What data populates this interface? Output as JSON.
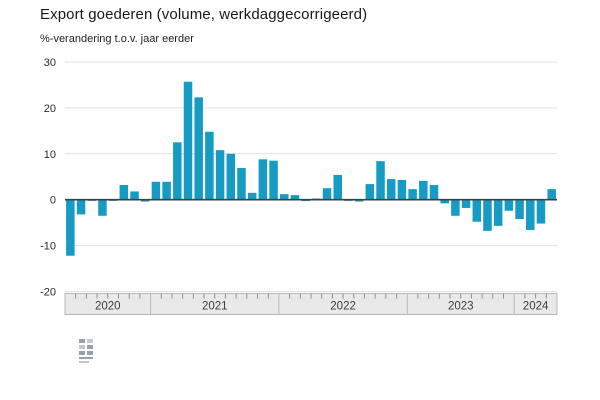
{
  "header": {
    "title": "Export goederen (volume, werkdaggecorrigeerd)",
    "subtitle": "%-verandering t.o.v. jaar eerder"
  },
  "chart_data": {
    "type": "bar",
    "title": "Export goederen (volume, werkdaggecorrigeerd)",
    "subtitle": "%-verandering t.o.v. jaar eerder",
    "unit": "% change year-on-year",
    "ylim": [
      -20,
      30
    ],
    "yticks": [
      30,
      20,
      10,
      0,
      -10,
      -20
    ],
    "grid": true,
    "legend_position": "none",
    "bar_color": "#169bc4",
    "zero_line_color": "#404040",
    "grid_color": "#e1e1e1",
    "axis_band": {
      "fill": "#e9e9e9",
      "border": "#b9b9b9",
      "tick_color": "#8f8f8f",
      "label_color": "#3c3c3c"
    },
    "series": [
      {
        "year": "2020",
        "values": [
          -12.2,
          -3.2,
          -0.2,
          -3.5,
          -0.2,
          3.2,
          1.8,
          -0.4
        ]
      },
      {
        "year": "2021",
        "values": [
          3.9,
          3.9,
          12.5,
          25.7,
          22.3,
          14.8,
          10.8,
          10.0,
          6.9,
          1.5,
          8.8,
          8.5
        ]
      },
      {
        "year": "2022",
        "values": [
          1.2,
          1.0,
          -0.3,
          0.2,
          2.5,
          5.4,
          -0.2,
          -0.4,
          3.4,
          8.4,
          4.5,
          4.3
        ]
      },
      {
        "year": "2023",
        "values": [
          2.3,
          4.1,
          3.2,
          -0.8,
          -3.5,
          -1.8,
          -4.8,
          -6.8,
          -5.7,
          -2.4
        ]
      },
      {
        "year": "2024",
        "values": [
          -4.2,
          -6.6,
          -5.2,
          2.3
        ]
      }
    ]
  },
  "footer": {
    "logo_name": "cbs-logo"
  }
}
